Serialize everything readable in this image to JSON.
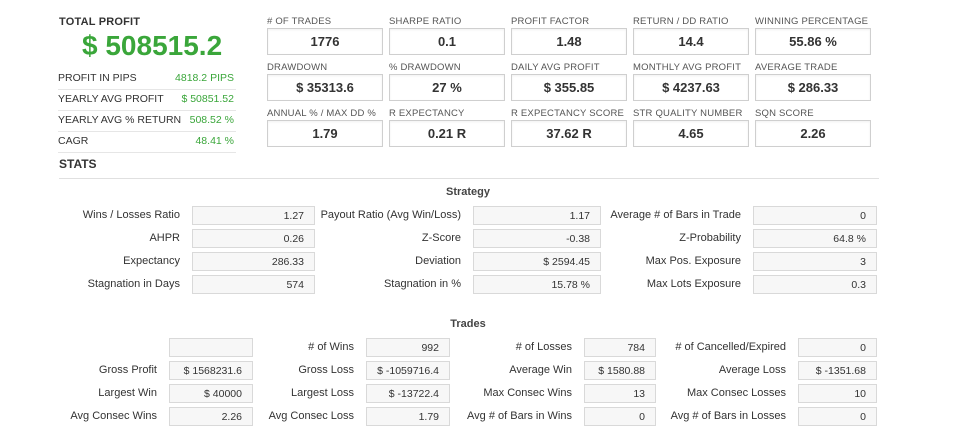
{
  "summary": {
    "total_profit_label": "TOTAL PROFIT",
    "total_profit_value": "$ 508515.2",
    "rows": [
      {
        "label": "PROFIT IN PIPS",
        "value": "4818.2 PIPS"
      },
      {
        "label": "YEARLY AVG PROFIT",
        "value": "$ 50851.52"
      },
      {
        "label": "YEARLY AVG % RETURN",
        "value": "508.52 %"
      },
      {
        "label": "CAGR",
        "value": "48.41 %"
      }
    ]
  },
  "metrics": [
    {
      "label": "# OF TRADES",
      "value": "1776"
    },
    {
      "label": "SHARPE RATIO",
      "value": "0.1"
    },
    {
      "label": "PROFIT FACTOR",
      "value": "1.48"
    },
    {
      "label": "RETURN / DD RATIO",
      "value": "14.4"
    },
    {
      "label": "WINNING PERCENTAGE",
      "value": "55.86 %"
    },
    {
      "label": "DRAWDOWN",
      "value": "$ 35313.6"
    },
    {
      "label": "% DRAWDOWN",
      "value": "27 %"
    },
    {
      "label": "DAILY AVG PROFIT",
      "value": "$ 355.85"
    },
    {
      "label": "MONTHLY AVG PROFIT",
      "value": "$ 4237.63"
    },
    {
      "label": "AVERAGE TRADE",
      "value": "$ 286.33"
    },
    {
      "label": "ANNUAL % / MAX DD %",
      "value": "1.79"
    },
    {
      "label": "R EXPECTANCY",
      "value": "0.21 R"
    },
    {
      "label": "R EXPECTANCY SCORE",
      "value": "37.62 R"
    },
    {
      "label": "STR QUALITY NUMBER",
      "value": "4.65"
    },
    {
      "label": "SQN SCORE",
      "value": "2.26"
    }
  ],
  "stats_title": "STATS",
  "strategy": {
    "title": "Strategy",
    "rows": [
      [
        {
          "label": "Wins / Losses Ratio",
          "value": "1.27"
        },
        {
          "label": "Payout Ratio (Avg Win/Loss)",
          "value": "1.17"
        },
        {
          "label": "Average # of Bars in Trade",
          "value": "0"
        }
      ],
      [
        {
          "label": "AHPR",
          "value": "0.26"
        },
        {
          "label": "Z-Score",
          "value": "-0.38"
        },
        {
          "label": "Z-Probability",
          "value": "64.8 %"
        }
      ],
      [
        {
          "label": "Expectancy",
          "value": "286.33"
        },
        {
          "label": "Deviation",
          "value": "$ 2594.45"
        },
        {
          "label": "Max Pos. Exposure",
          "value": "3"
        }
      ],
      [
        {
          "label": "Stagnation in Days",
          "value": "574"
        },
        {
          "label": "Stagnation in %",
          "value": "15.78 %"
        },
        {
          "label": "Max Lots Exposure",
          "value": "0.3"
        }
      ]
    ]
  },
  "trades": {
    "title": "Trades",
    "rows": [
      [
        {
          "label": "",
          "value": ""
        },
        {
          "label": "# of Wins",
          "value": "992"
        },
        {
          "label": "# of Losses",
          "value": "784"
        },
        {
          "label": "# of Cancelled/Expired",
          "value": "0"
        }
      ],
      [
        {
          "label": "Gross Profit",
          "value": "$ 1568231.6"
        },
        {
          "label": "Gross Loss",
          "value": "$ -1059716.4"
        },
        {
          "label": "Average Win",
          "value": "$ 1580.88"
        },
        {
          "label": "Average Loss",
          "value": "$ -1351.68"
        }
      ],
      [
        {
          "label": "Largest Win",
          "value": "$ 40000"
        },
        {
          "label": "Largest Loss",
          "value": "$ -13722.4"
        },
        {
          "label": "Max Consec Wins",
          "value": "13"
        },
        {
          "label": "Max Consec Losses",
          "value": "10"
        }
      ],
      [
        {
          "label": "Avg Consec Wins",
          "value": "2.26"
        },
        {
          "label": "Avg Consec Loss",
          "value": "1.79"
        },
        {
          "label": "Avg # of Bars in Wins",
          "value": "0"
        },
        {
          "label": "Avg # of Bars in Losses",
          "value": "0"
        }
      ]
    ]
  }
}
